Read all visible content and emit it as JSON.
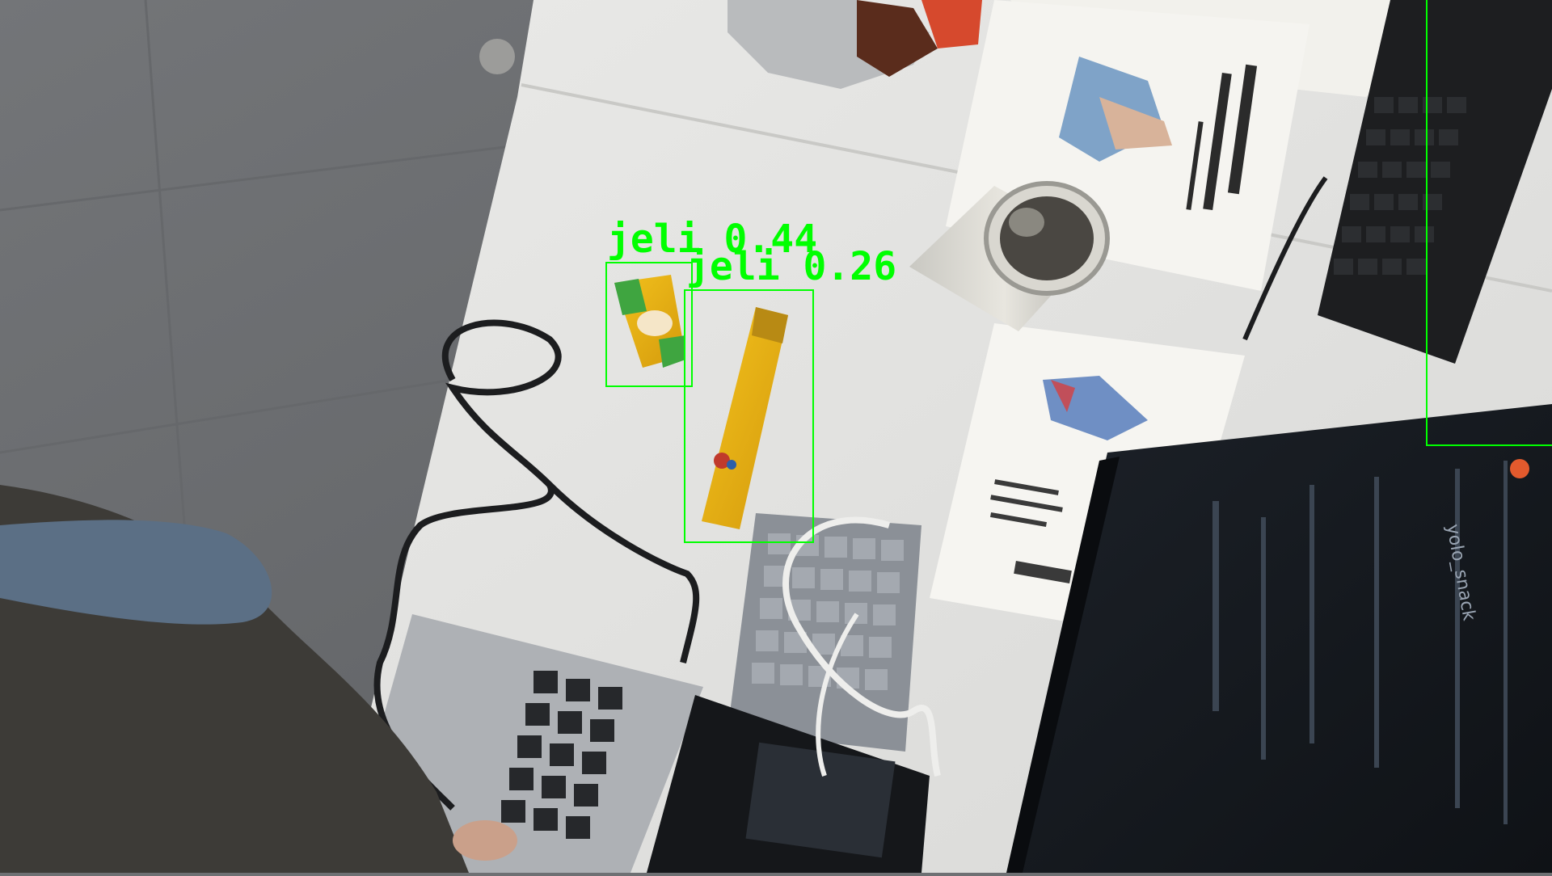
{
  "detections": [
    {
      "class_label": "jeli",
      "confidence": "0.44",
      "color": "#00ff00"
    },
    {
      "class_label": "jeli",
      "confidence": "0.26",
      "color": "#00ff00"
    },
    {
      "class_label": "",
      "confidence": "",
      "color": "#00ff00"
    }
  ],
  "screen_tab_text": "yolo_snack"
}
